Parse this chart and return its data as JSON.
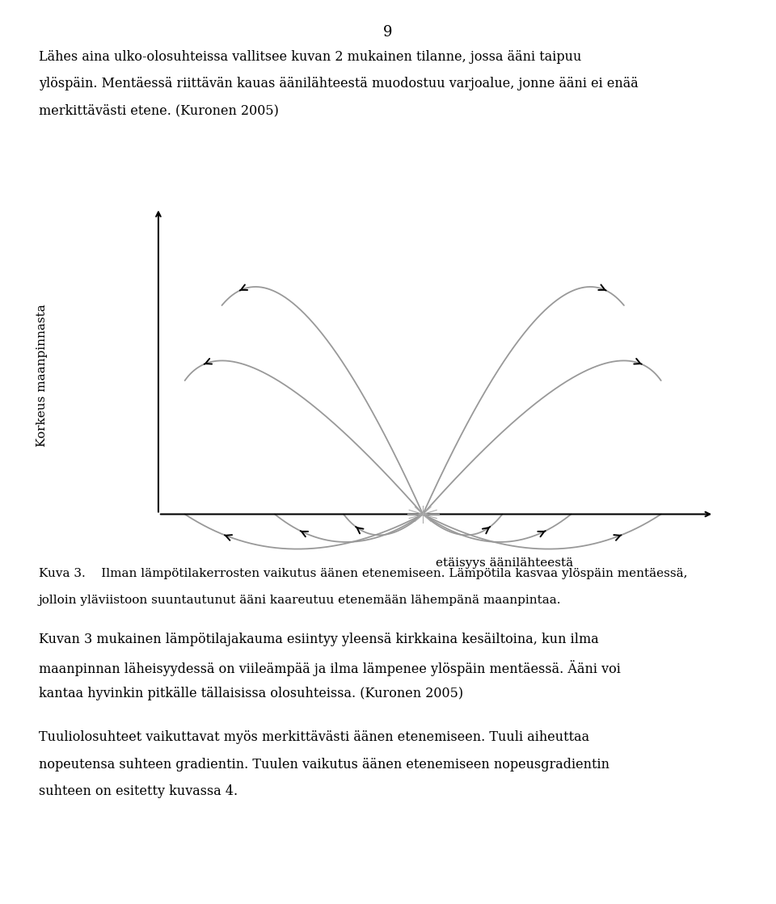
{
  "page_number": "9",
  "p1_lines": [
    "Lähes aina ulko-olosuhteissa vallitsee kuvan 2 mukainen tilanne, jossa ääni taipuu",
    "ylöspäin. Mentäessä riittävän kauas äänilähteestä muodostuu varjoalue, jonne ääni ei enää",
    "merkittävästi etene. (Kuronen 2005)"
  ],
  "ylabel": "Korkeus maanpinnasta",
  "xlabel": "etäisyys äänilähteestä",
  "cap_lines": [
    "Kuva 3.    Ilman lämpötilakerrosten vaikutus äänen etenemiseen. Lämpötila kasvaa ylöspäin mentäessä,",
    "jolloin yläviistoon suuntautunut ääni kaareutuu etenemään lähempänä maanpintaa."
  ],
  "p2_lines": [
    "Kuvan 3 mukainen lämpötilajakauma esiintyy yleensä kirkkaina kesäiltoina, kun ilma",
    "maanpinnan läheisyydessä on viileämpää ja ilma lämpenee ylöspäin mentäessä. Ääni voi",
    "kantaa hyvinkin pitkälle tällaisissa olosuhteissa. (Kuronen 2005)"
  ],
  "p3_lines": [
    "Tuuliolosuhteet vaikuttavat myös merkittävästi äänen etenemiseen. Tuuli aiheuttaa",
    "nopeutensa suhteen gradientin. Tuulen vaikutus äänen etenemiseen nopeusgradientin",
    "suhteen on esitetty kuvassa 4."
  ],
  "bg_color": "#ffffff",
  "text_color": "#000000",
  "line_color": "#999999"
}
